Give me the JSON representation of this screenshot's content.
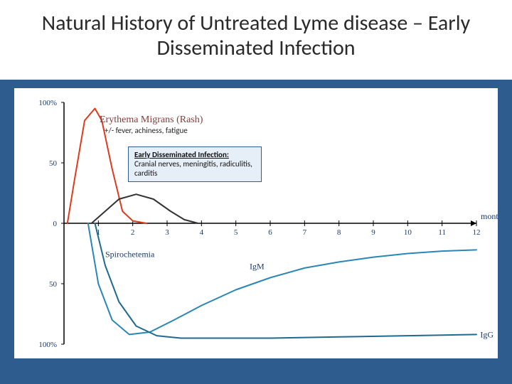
{
  "title": "Natural History of Untreated Lyme disease – Early Disseminated Infection",
  "chart": {
    "type": "line",
    "background_color": "#ffffff",
    "slide_background": "#2f5c8f",
    "x": {
      "label": "months",
      "min": 0,
      "max": 12,
      "ticks": [
        1,
        2,
        3,
        4,
        5,
        6,
        7,
        8,
        9,
        10,
        11,
        12
      ]
    },
    "y": {
      "min": -100,
      "max": 100,
      "ticks": [
        100,
        50,
        0,
        -50,
        -100
      ],
      "tick_labels": [
        "100%",
        "50",
        "0",
        "50",
        "100%"
      ]
    },
    "axis_color": "#000000",
    "tick_color": "#000000",
    "tick_label_color": "#1a3a6a",
    "series": [
      {
        "name": "Erythema Migrans (Rash)",
        "color": "#e03a1c",
        "width": 2,
        "points": [
          [
            0.1,
            0
          ],
          [
            0.3,
            35
          ],
          [
            0.6,
            85
          ],
          [
            0.9,
            95
          ],
          [
            1.1,
            85
          ],
          [
            1.4,
            45
          ],
          [
            1.7,
            10
          ],
          [
            2.0,
            2
          ],
          [
            2.4,
            0
          ]
        ]
      },
      {
        "name": "Early Disseminated",
        "color": "#333333",
        "width": 2,
        "points": [
          [
            0.8,
            0
          ],
          [
            1.2,
            10
          ],
          [
            1.6,
            20
          ],
          [
            2.1,
            24
          ],
          [
            2.6,
            20
          ],
          [
            3.1,
            10
          ],
          [
            3.5,
            3
          ],
          [
            3.9,
            0
          ]
        ]
      },
      {
        "name": "Spirochetemia",
        "color": "#2a86b8",
        "width": 2,
        "points": [
          [
            0.7,
            0
          ],
          [
            1.0,
            -50
          ],
          [
            1.4,
            -80
          ],
          [
            1.9,
            -92
          ],
          [
            2.5,
            -90
          ],
          [
            3.2,
            -80
          ],
          [
            4.0,
            -68
          ],
          [
            5.0,
            -55
          ],
          [
            6.0,
            -45
          ],
          [
            7.0,
            -37
          ],
          [
            8.0,
            -32
          ],
          [
            9.0,
            -28
          ],
          [
            10.0,
            -25
          ],
          [
            11.0,
            -23
          ],
          [
            12.0,
            -22
          ]
        ]
      },
      {
        "name": "IgM",
        "color": "#1f6a8f",
        "width": 2,
        "start_label_at": [
          5.4,
          -38
        ],
        "points": [
          [
            0.9,
            0
          ],
          [
            1.2,
            -35
          ],
          [
            1.6,
            -65
          ],
          [
            2.1,
            -85
          ],
          [
            2.7,
            -93
          ],
          [
            3.4,
            -95
          ],
          [
            4.5,
            -95
          ],
          [
            6.0,
            -95
          ],
          [
            8.0,
            -94
          ],
          [
            10.0,
            -93
          ],
          [
            12.0,
            -92
          ]
        ]
      },
      {
        "name": "IgG",
        "color": "#2f7a3c",
        "width": 2,
        "label_at": [
          12.0,
          -92
        ],
        "points": []
      }
    ],
    "annotations": {
      "erythema_label": "Erythema Migrans (Rash)",
      "erythema_sub": "+/- fever, achiness, fatigue",
      "spirochetemia": "Spirochetemia",
      "igm": "IgM",
      "igg": "IgG",
      "callout_title": "Early Disseminated Infection:",
      "callout_body": "Cranial nerves, meningitis, radiculitis, carditis"
    },
    "title_fontsize": 30,
    "axis_fontsize": 12
  }
}
